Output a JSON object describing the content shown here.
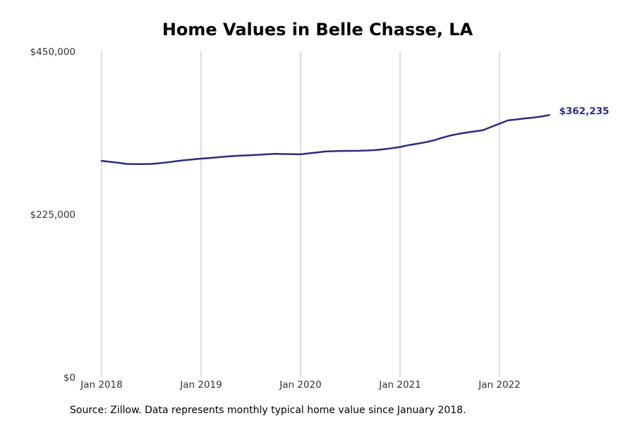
{
  "source_note": "Source: Zillow. Data represents monthly typical home value since January 2018.",
  "chart_data": {
    "type": "line",
    "title": "Home Values in Belle Chasse, LA",
    "xlabel": "",
    "ylabel": "",
    "ylim": [
      0,
      450000
    ],
    "y_ticks": [
      {
        "value": 0,
        "label": "$0"
      },
      {
        "value": 225000,
        "label": "$225,000"
      },
      {
        "value": 450000,
        "label": "$450,000"
      }
    ],
    "x_ticks": [
      {
        "value": 0,
        "label": "Jan 2018"
      },
      {
        "value": 12,
        "label": "Jan 2019"
      },
      {
        "value": 24,
        "label": "Jan 2020"
      },
      {
        "value": 36,
        "label": "Jan 2021"
      },
      {
        "value": 48,
        "label": "Jan 2022"
      }
    ],
    "xlim_months": [
      0,
      54
    ],
    "grid": "vertical",
    "line_color": "#2e2b7f",
    "end_label": "$362,235",
    "series": [
      {
        "x": [
          0,
          1,
          2,
          3,
          4,
          5,
          6,
          7,
          8,
          9,
          10,
          11,
          12,
          13,
          14,
          15,
          16,
          17,
          18,
          19,
          20,
          21,
          22,
          23,
          24,
          25,
          26,
          27,
          28,
          29,
          30,
          31,
          32,
          33,
          34,
          35,
          36,
          37,
          38,
          39,
          40,
          41,
          42,
          43,
          44,
          45,
          46,
          47,
          48,
          49,
          50,
          51,
          52,
          53,
          54
        ],
        "values": [
          298900,
          297600,
          296200,
          294600,
          294400,
          294400,
          294600,
          295600,
          296900,
          298400,
          299800,
          300900,
          301900,
          302800,
          303800,
          304800,
          305600,
          306200,
          306700,
          307300,
          308000,
          308600,
          308300,
          308100,
          307900,
          309200,
          310500,
          311800,
          312300,
          312500,
          312700,
          312800,
          313200,
          313700,
          314900,
          316300,
          318000,
          320500,
          322400,
          324400,
          327000,
          330500,
          333700,
          336000,
          338000,
          339600,
          341200,
          345800,
          350200,
          354800,
          356000,
          357500,
          358600,
          360000,
          362235
        ]
      }
    ]
  }
}
